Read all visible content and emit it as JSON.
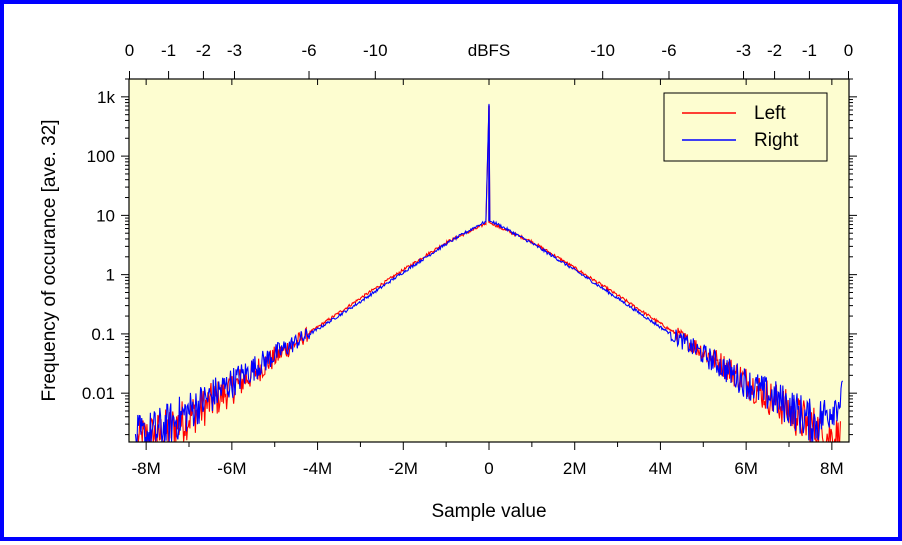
{
  "chart_data": {
    "type": "line",
    "xlabel": "Sample value",
    "ylabel": "Frequency of occurance [ave. 32]",
    "top_axis_label": "dBFS",
    "xlim": [
      -8400000,
      8400000
    ],
    "ylim": [
      0.0015,
      2000
    ],
    "y_scale": "log",
    "background": "#fdfdd0",
    "x_ticks": [
      {
        "value": -8000000,
        "label": "-8M"
      },
      {
        "value": -6000000,
        "label": "-6M"
      },
      {
        "value": -4000000,
        "label": "-4M"
      },
      {
        "value": -2000000,
        "label": "-2M"
      },
      {
        "value": 0,
        "label": "0"
      },
      {
        "value": 2000000,
        "label": "2M"
      },
      {
        "value": 4000000,
        "label": "4M"
      },
      {
        "value": 6000000,
        "label": "6M"
      },
      {
        "value": 8000000,
        "label": "8M"
      }
    ],
    "y_ticks": [
      {
        "value": 1000,
        "label": "1k"
      },
      {
        "value": 100,
        "label": "100"
      },
      {
        "value": 10,
        "label": "10"
      },
      {
        "value": 1,
        "label": "1"
      },
      {
        "value": 0.1,
        "label": "0.1"
      },
      {
        "value": 0.01,
        "label": "0.01"
      }
    ],
    "top_ticks": [
      {
        "value": -8388608,
        "label": "0"
      },
      {
        "value": -7476414,
        "label": "-1"
      },
      {
        "value": -6663368,
        "label": "-2"
      },
      {
        "value": -5938765,
        "label": "-3"
      },
      {
        "value": -4199587,
        "label": "-6"
      },
      {
        "value": -2652744,
        "label": "-10"
      },
      {
        "value": 2652744,
        "label": "-10"
      },
      {
        "value": 4199587,
        "label": "-6"
      },
      {
        "value": 5938765,
        "label": "-3"
      },
      {
        "value": 6663368,
        "label": "-2"
      },
      {
        "value": 7476414,
        "label": "-1"
      },
      {
        "value": 8388608,
        "label": "0"
      }
    ],
    "legend": {
      "position": "top-right"
    },
    "series": [
      {
        "name": "Left",
        "color": "#ff0000",
        "x": [
          -8200000,
          -7600000,
          -7000000,
          -6000000,
          -5000000,
          -4000000,
          -3000000,
          -2000000,
          -1000000,
          -300000,
          -50000,
          0,
          50000,
          300000,
          1000000,
          2000000,
          3000000,
          4000000,
          5000000,
          6000000,
          7000000,
          7600000,
          8200000
        ],
        "y": [
          0.0015,
          0.002,
          0.004,
          0.012,
          0.04,
          0.13,
          0.4,
          1.2,
          3.5,
          6.0,
          7.5,
          700,
          7.5,
          6.0,
          3.6,
          1.3,
          0.45,
          0.15,
          0.05,
          0.016,
          0.005,
          0.0025,
          0.0015
        ]
      },
      {
        "name": "Right",
        "color": "#0000ff",
        "x": [
          -8250000,
          -7600000,
          -7000000,
          -6000000,
          -5000000,
          -4000000,
          -3000000,
          -2000000,
          -1000000,
          -300000,
          -50000,
          0,
          50000,
          300000,
          1000000,
          2000000,
          3000000,
          4000000,
          5000000,
          6000000,
          7000000,
          7600000,
          8250000
        ],
        "y": [
          0.0015,
          0.0025,
          0.005,
          0.015,
          0.045,
          0.12,
          0.35,
          1.1,
          3.3,
          6.5,
          8.0,
          720,
          8.0,
          6.5,
          3.4,
          1.2,
          0.4,
          0.13,
          0.045,
          0.015,
          0.006,
          0.003,
          0.0085
        ]
      }
    ]
  }
}
